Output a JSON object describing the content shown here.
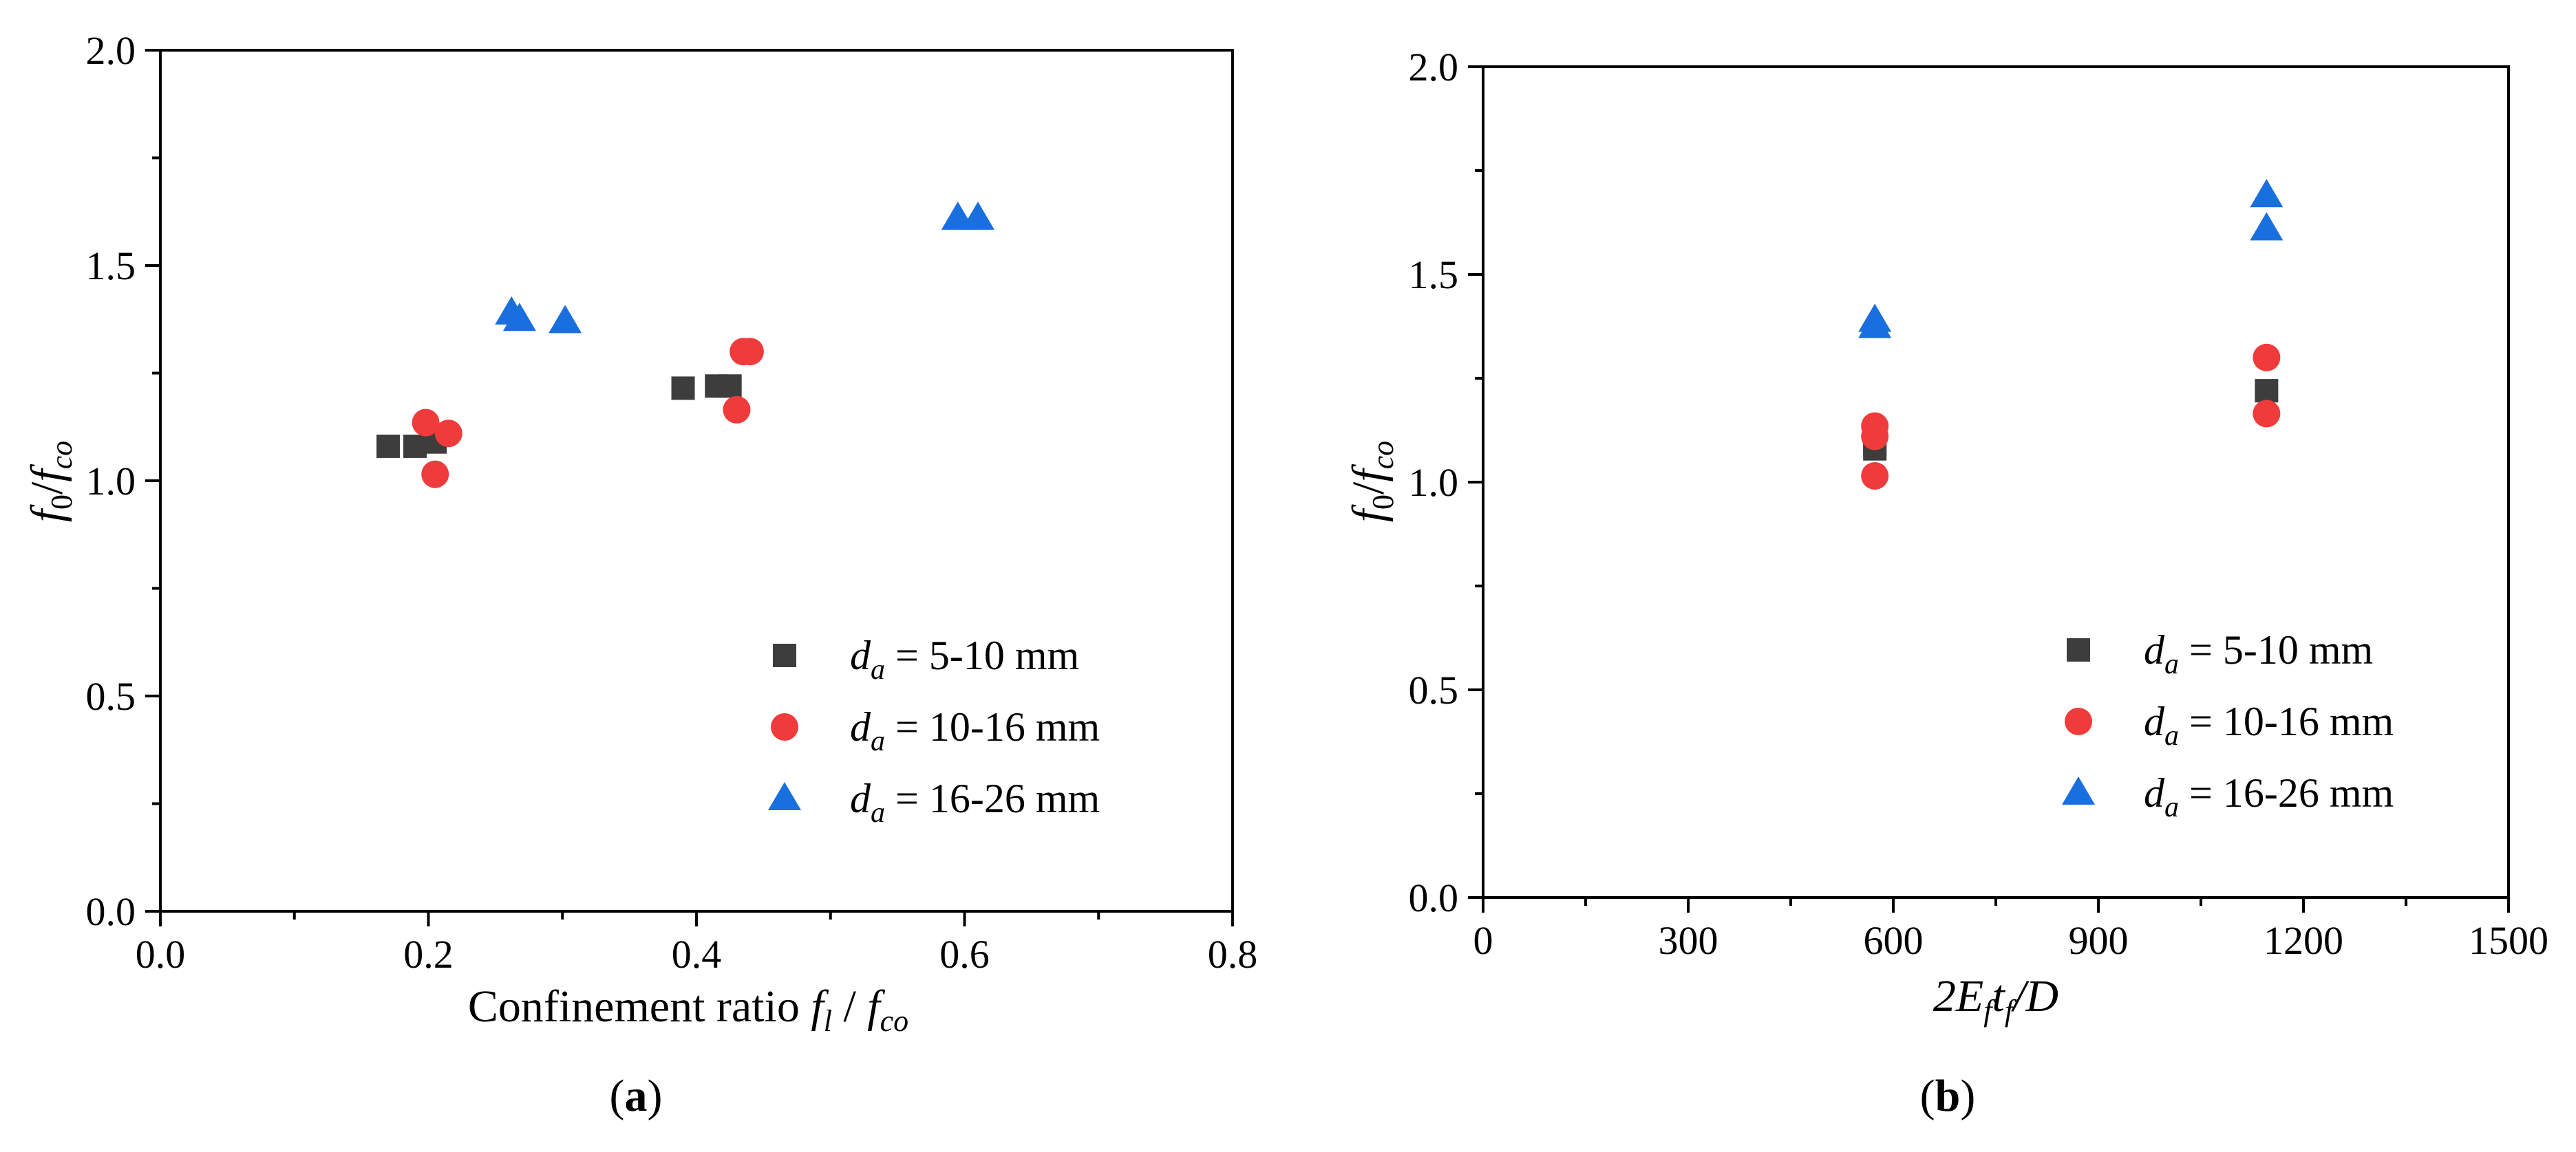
{
  "colors": {
    "series_square": "#3d3d3d",
    "series_circle": "#ef3b3b",
    "series_triangle": "#1a6fdf"
  },
  "chart_data": [
    {
      "type": "scatter",
      "panel_label": "a",
      "panel_label_display": "(a)",
      "xlabel": "Confinement ratio fl / fco",
      "xlabel_main": "Confinement ratio ",
      "xlabel_f1": "f",
      "xlabel_sub1": "l",
      "xlabel_slash": " / ",
      "xlabel_f2": "f",
      "xlabel_sub2": "co",
      "ylabel": "f0/fco",
      "ylabel_f1": "f",
      "ylabel_sub1": "0",
      "ylabel_slash": "/",
      "ylabel_f2": "f",
      "ylabel_sub2": "co",
      "xlim": [
        0.0,
        0.8
      ],
      "ylim": [
        0.0,
        2.0
      ],
      "xticks": [
        "0.0",
        "0.2",
        "0.4",
        "0.6",
        "0.8"
      ],
      "yticks": [
        "0.0",
        "0.5",
        "1.0",
        "1.5",
        "2.0"
      ],
      "legend_position": "lower-right",
      "series": [
        {
          "name": "da = 5-10 mm",
          "symbol": "d",
          "sub": "a",
          "rest": " = 5-10 mm",
          "marker": "square",
          "x": [
            0.17,
            0.19,
            0.205,
            0.39,
            0.415,
            0.425
          ],
          "y": [
            1.08,
            1.08,
            1.09,
            1.215,
            1.22,
            1.22
          ]
        },
        {
          "name": "da = 10-16 mm",
          "symbol": "d",
          "sub": "a",
          "rest": " = 10-16 mm",
          "marker": "circle",
          "x": [
            0.198,
            0.205,
            0.215,
            0.43,
            0.435,
            0.44
          ],
          "y": [
            1.135,
            1.015,
            1.11,
            1.165,
            1.3,
            1.3
          ]
        },
        {
          "name": "da = 16-26 mm",
          "symbol": "d",
          "sub": "a",
          "rest": " = 16-26 mm",
          "marker": "triangle",
          "x": [
            0.262,
            0.268,
            0.302,
            0.595,
            0.61
          ],
          "y": [
            1.39,
            1.375,
            1.37,
            1.61,
            1.61
          ]
        }
      ]
    },
    {
      "type": "scatter",
      "panel_label": "b",
      "panel_label_display": "(b)",
      "xlabel": "2Ef tf / D",
      "xlabel_a": "2E",
      "xlabel_sub1": "f",
      "xlabel_b": "t",
      "xlabel_sub2": "f",
      "xlabel_c": "/D",
      "ylabel": "f0/fco",
      "ylabel_f1": "f",
      "ylabel_sub1": "0",
      "ylabel_slash": "/",
      "ylabel_f2": "f",
      "ylabel_sub2": "co",
      "xlim": [
        0,
        1500
      ],
      "ylim": [
        0.0,
        2.0
      ],
      "xticks": [
        "0",
        "300",
        "600",
        "900",
        "1200",
        "1500"
      ],
      "yticks": [
        "0.0",
        "0.5",
        "1.0",
        "1.5",
        "2.0"
      ],
      "legend_position": "lower-right",
      "series": [
        {
          "name": "da = 5-10 mm",
          "symbol": "d",
          "sub": "a",
          "rest": " = 5-10 mm",
          "marker": "square",
          "x": [
            573,
            573,
            1146
          ],
          "y": [
            1.08,
            1.09,
            1.22
          ]
        },
        {
          "name": "da = 10-16 mm",
          "symbol": "d",
          "sub": "a",
          "rest": " = 10-16 mm",
          "marker": "circle",
          "x": [
            573,
            573,
            573,
            1146,
            1146
          ],
          "y": [
            1.015,
            1.11,
            1.135,
            1.165,
            1.3
          ]
        },
        {
          "name": "da = 16-26 mm",
          "symbol": "d",
          "sub": "a",
          "rest": " = 16-26 mm",
          "marker": "triangle",
          "x": [
            573,
            573,
            1146,
            1146
          ],
          "y": [
            1.375,
            1.39,
            1.61,
            1.69
          ]
        }
      ]
    }
  ]
}
